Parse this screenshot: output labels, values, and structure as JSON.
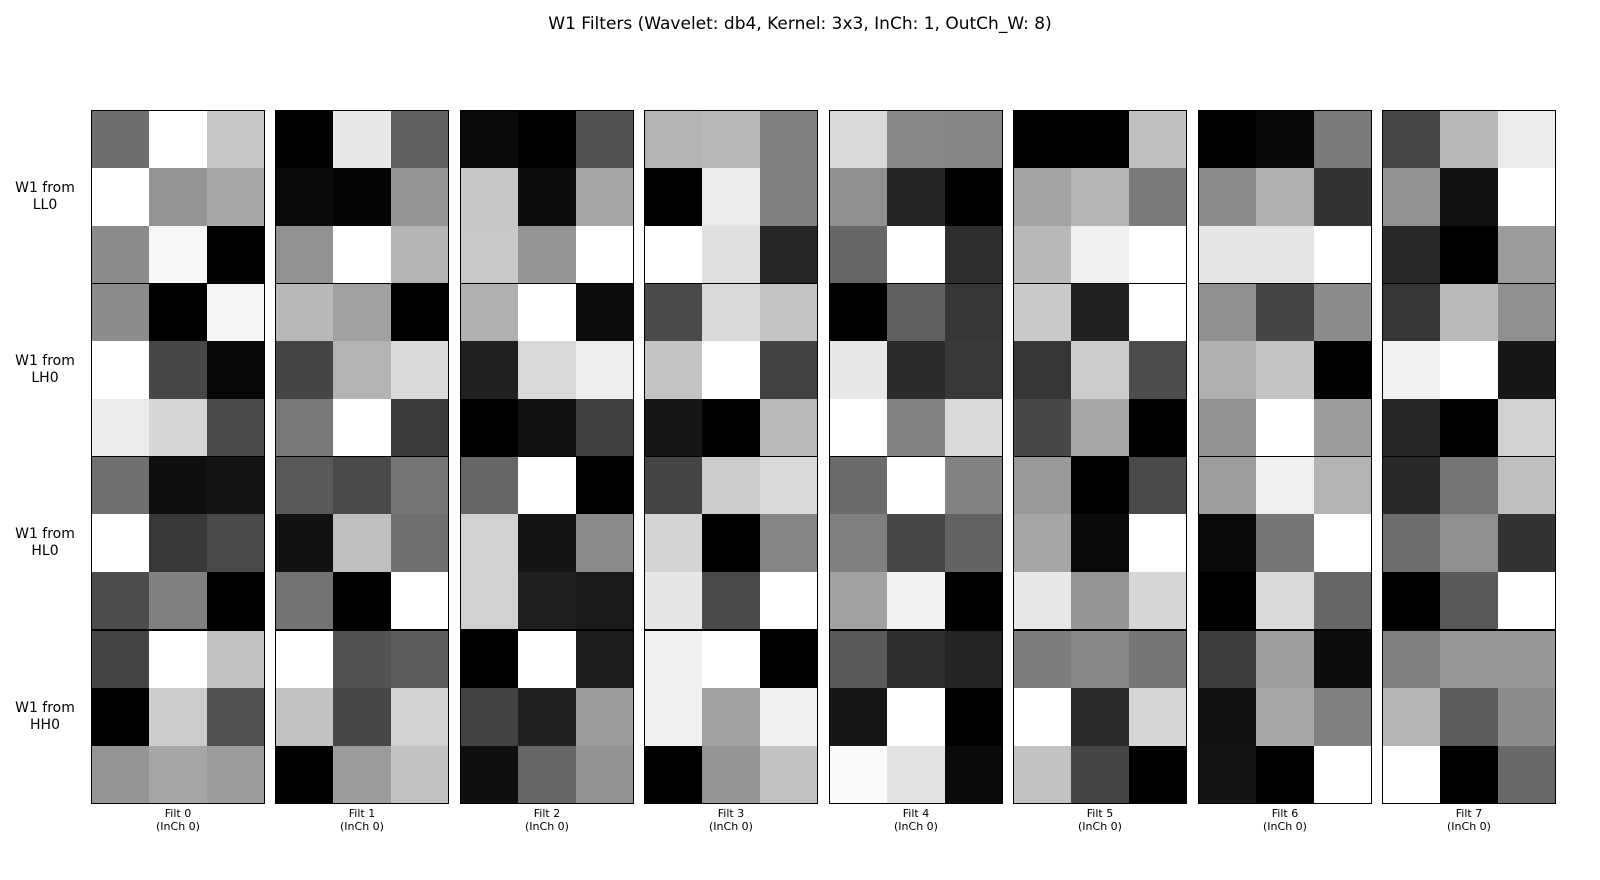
{
  "chart_data": {
    "type": "heatmap",
    "title": "W1 Filters (Wavelet: db4, Kernel: 3x3, InCh: 1, OutCh_W: 8)",
    "colormap": "gray",
    "row_labels": [
      "W1 from\nLL0",
      "W1 from\nLH0",
      "W1 from\nHL0",
      "W1 from\nHH0"
    ],
    "col_labels": [
      "Filt 0\n(InCh 0)",
      "Filt 1\n(InCh 0)",
      "Filt 2\n(InCh 0)",
      "Filt 3\n(InCh 0)",
      "Filt 4\n(InCh 0)",
      "Filt 5\n(InCh 0)",
      "Filt 6\n(InCh 0)",
      "Filt 7\n(InCh 0)"
    ],
    "panels": [
      [
        [
          [
            0.43,
            1.0,
            0.78
          ],
          [
            1.0,
            0.58,
            0.66
          ],
          [
            0.55,
            0.97,
            0.0
          ]
        ],
        [
          [
            0.0,
            0.91,
            0.38
          ],
          [
            0.04,
            0.02,
            0.58
          ],
          [
            0.57,
            1.0,
            0.7
          ]
        ],
        [
          [
            0.04,
            0.0,
            0.32
          ],
          [
            0.78,
            0.05,
            0.65
          ],
          [
            0.79,
            0.58,
            1.0
          ]
        ],
        [
          [
            0.7,
            0.72,
            0.5
          ],
          [
            0.0,
            0.92,
            0.5
          ],
          [
            1.0,
            0.88,
            0.15
          ]
        ],
        [
          [
            0.85,
            0.53,
            0.52
          ],
          [
            0.56,
            0.14,
            0.0
          ],
          [
            0.4,
            1.0,
            0.18
          ]
        ],
        [
          [
            0.0,
            0.0,
            0.75
          ],
          [
            0.64,
            0.71,
            0.48
          ],
          [
            0.72,
            0.94,
            1.0
          ]
        ],
        [
          [
            0.0,
            0.03,
            0.48
          ],
          [
            0.55,
            0.69,
            0.2
          ],
          [
            0.9,
            0.9,
            1.0
          ]
        ],
        [
          [
            0.28,
            0.72,
            0.92
          ],
          [
            0.57,
            0.07,
            1.0
          ],
          [
            0.16,
            0.0,
            0.61
          ]
        ]
      ],
      [
        [
          [
            0.55,
            0.0,
            0.96
          ],
          [
            1.0,
            0.28,
            0.03
          ],
          [
            0.92,
            0.84,
            0.29
          ]
        ],
        [
          [
            0.72,
            0.63,
            0.0
          ],
          [
            0.27,
            0.7,
            0.85
          ],
          [
            0.47,
            1.0,
            0.23
          ]
        ],
        [
          [
            0.69,
            1.0,
            0.05
          ],
          [
            0.13,
            0.85,
            0.93
          ],
          [
            0.0,
            0.07,
            0.25
          ]
        ],
        [
          [
            0.29,
            0.85,
            0.77
          ],
          [
            0.77,
            1.0,
            0.26
          ],
          [
            0.09,
            0.0,
            0.73
          ]
        ],
        [
          [
            0.0,
            0.38,
            0.21
          ],
          [
            0.91,
            0.17,
            0.22
          ],
          [
            1.0,
            0.51,
            0.85
          ]
        ],
        [
          [
            0.79,
            0.13,
            1.0
          ],
          [
            0.21,
            0.8,
            0.3
          ],
          [
            0.28,
            0.66,
            0.0
          ]
        ],
        [
          [
            0.56,
            0.27,
            0.55
          ],
          [
            0.69,
            0.77,
            0.0
          ],
          [
            0.57,
            1.0,
            0.61
          ]
        ],
        [
          [
            0.21,
            0.73,
            0.56
          ],
          [
            0.95,
            1.0,
            0.09
          ],
          [
            0.15,
            0.0,
            0.82
          ]
        ]
      ],
      [
        [
          [
            0.44,
            0.06,
            0.08
          ],
          [
            1.0,
            0.22,
            0.29
          ],
          [
            0.3,
            0.5,
            0.0
          ]
        ],
        [
          [
            0.35,
            0.29,
            0.46
          ],
          [
            0.07,
            0.75,
            0.44
          ],
          [
            0.45,
            0.0,
            1.0
          ]
        ],
        [
          [
            0.4,
            1.0,
            0.0
          ],
          [
            0.82,
            0.08,
            0.55
          ],
          [
            0.82,
            0.12,
            0.1
          ]
        ],
        [
          [
            0.27,
            0.8,
            0.85
          ],
          [
            0.83,
            0.0,
            0.52
          ],
          [
            0.9,
            0.29,
            1.0
          ]
        ],
        [
          [
            0.42,
            1.0,
            0.51
          ],
          [
            0.5,
            0.28,
            0.39
          ],
          [
            0.63,
            0.95,
            0.0
          ]
        ],
        [
          [
            0.6,
            0.0,
            0.29
          ],
          [
            0.65,
            0.04,
            1.0
          ],
          [
            0.91,
            0.58,
            0.84
          ]
        ],
        [
          [
            0.62,
            0.94,
            0.7
          ],
          [
            0.04,
            0.46,
            1.0
          ],
          [
            0.0,
            0.85,
            0.4
          ]
        ],
        [
          [
            0.16,
            0.46,
            0.75
          ],
          [
            0.43,
            0.56,
            0.2
          ],
          [
            0.0,
            0.35,
            1.0
          ]
        ]
      ],
      [
        [
          [
            0.27,
            1.0,
            0.76
          ],
          [
            0.0,
            0.8,
            0.32
          ],
          [
            0.58,
            0.65,
            0.61
          ]
        ],
        [
          [
            1.0,
            0.32,
            0.36
          ],
          [
            0.76,
            0.28,
            0.82
          ],
          [
            0.0,
            0.61,
            0.76
          ]
        ],
        [
          [
            0.0,
            1.0,
            0.11
          ],
          [
            0.26,
            0.13,
            0.61
          ],
          [
            0.06,
            0.4,
            0.57
          ]
        ],
        [
          [
            0.94,
            1.0,
            0.0
          ],
          [
            0.94,
            0.63,
            0.94
          ],
          [
            0.0,
            0.58,
            0.76
          ]
        ],
        [
          [
            0.35,
            0.18,
            0.14
          ],
          [
            0.09,
            1.0,
            0.0
          ],
          [
            0.98,
            0.89,
            0.04
          ]
        ],
        [
          [
            0.49,
            0.53,
            0.46
          ],
          [
            1.0,
            0.17,
            0.84
          ],
          [
            0.76,
            0.27,
            0.0
          ]
        ],
        [
          [
            0.24,
            0.62,
            0.05
          ],
          [
            0.07,
            0.66,
            0.5
          ],
          [
            0.08,
            0.0,
            1.0
          ]
        ],
        [
          [
            0.5,
            0.59,
            0.59
          ],
          [
            0.71,
            0.36,
            0.55
          ],
          [
            1.0,
            0.0,
            0.41
          ]
        ]
      ]
    ]
  }
}
